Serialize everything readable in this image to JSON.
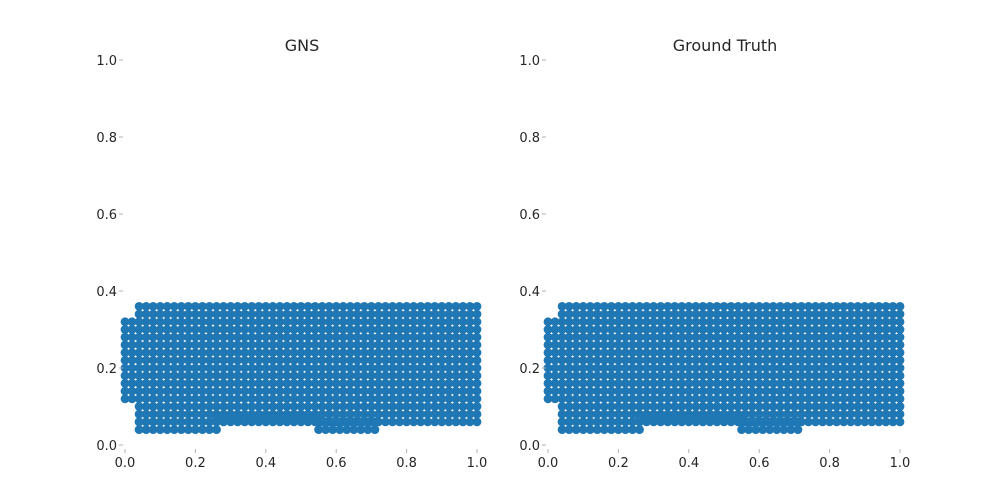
{
  "chart_data": [
    {
      "type": "scatter",
      "title": "GNS",
      "xlabel": "",
      "ylabel": "",
      "xlim": [
        0.0,
        1.0
      ],
      "ylim": [
        0.0,
        1.0
      ],
      "xticks": [
        "0.0",
        "0.2",
        "0.4",
        "0.6",
        "0.8",
        "1.0"
      ],
      "yticks": [
        "0.0",
        "0.2",
        "0.4",
        "0.6",
        "0.8",
        "1.0"
      ],
      "grid": false,
      "marker_color": "#1f77b4",
      "regions": [
        {
          "x": [
            0.0,
            0.035
          ],
          "y": [
            0.12,
            0.32
          ]
        },
        {
          "x": [
            0.04,
            1.0
          ],
          "y": [
            0.06,
            0.37
          ]
        },
        {
          "x": [
            0.04,
            0.26
          ],
          "y": [
            0.04,
            0.06
          ]
        },
        {
          "x": [
            0.26,
            0.55
          ],
          "y": [
            0.07,
            0.07
          ]
        },
        {
          "x": [
            0.55,
            0.72
          ],
          "y": [
            0.04,
            0.06
          ]
        }
      ],
      "particle_spacing": 0.02
    },
    {
      "type": "scatter",
      "title": "Ground Truth",
      "xlabel": "",
      "ylabel": "",
      "xlim": [
        0.0,
        1.0
      ],
      "ylim": [
        0.0,
        1.0
      ],
      "xticks": [
        "0.0",
        "0.2",
        "0.4",
        "0.6",
        "0.8",
        "1.0"
      ],
      "yticks": [
        "0.0",
        "0.2",
        "0.4",
        "0.6",
        "0.8",
        "1.0"
      ],
      "grid": false,
      "marker_color": "#1f77b4",
      "regions": [
        {
          "x": [
            0.0,
            0.035
          ],
          "y": [
            0.12,
            0.32
          ]
        },
        {
          "x": [
            0.04,
            1.0
          ],
          "y": [
            0.06,
            0.37
          ]
        },
        {
          "x": [
            0.04,
            0.26
          ],
          "y": [
            0.04,
            0.06
          ]
        },
        {
          "x": [
            0.26,
            0.55
          ],
          "y": [
            0.07,
            0.07
          ]
        },
        {
          "x": [
            0.55,
            0.72
          ],
          "y": [
            0.04,
            0.06
          ]
        }
      ],
      "particle_spacing": 0.02
    }
  ]
}
